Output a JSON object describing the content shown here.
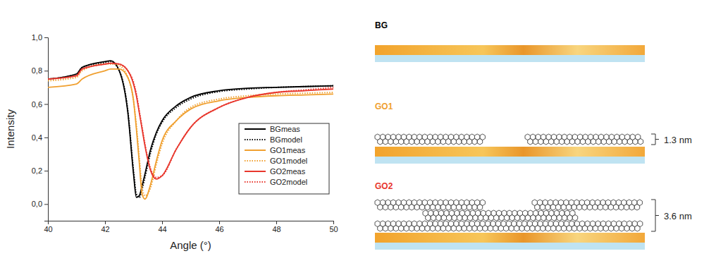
{
  "chart_data": {
    "type": "line",
    "x_label": "Angle (°)",
    "y_label": "Intensity",
    "x": [
      40,
      41,
      41.2,
      42,
      42.2,
      42.5,
      42.8,
      43,
      43.1,
      43.2,
      43.3,
      43.4,
      43.6,
      43.8,
      44,
      44.5,
      45,
      46,
      47,
      48,
      49,
      50
    ],
    "xlim": [
      40,
      50
    ],
    "xticks": [
      40,
      42,
      44,
      46,
      48,
      50
    ],
    "ylim": [
      -0.1,
      1.0
    ],
    "yticks": [
      {
        "value": 0,
        "label": "0,0"
      },
      {
        "value": 0.2,
        "label": "0,2"
      },
      {
        "value": 0.4,
        "label": "0,4"
      },
      {
        "value": 0.6,
        "label": "0,6"
      },
      {
        "value": 0.8,
        "label": "0,8"
      },
      {
        "value": 1.0,
        "label": "1,0"
      }
    ],
    "legend": "lower right",
    "series": [
      {
        "name": "BGmeas",
        "color": "#000000",
        "line_style": "solid",
        "values": [
          0.75,
          0.78,
          0.82,
          0.855,
          0.86,
          0.8,
          0.55,
          0.18,
          0.04,
          0.05,
          0.11,
          0.18,
          0.33,
          0.43,
          0.5,
          0.59,
          0.64,
          0.68,
          0.695,
          0.7,
          0.705,
          0.71
        ]
      },
      {
        "name": "BGmodel",
        "color": "#000000",
        "line_style": "dotted",
        "values": [
          0.75,
          0.78,
          0.82,
          0.85,
          0.855,
          0.8,
          0.56,
          0.2,
          0.06,
          0.04,
          0.09,
          0.16,
          0.31,
          0.42,
          0.49,
          0.58,
          0.63,
          0.675,
          0.69,
          0.7,
          0.705,
          0.71
        ]
      },
      {
        "name": "GO1meas",
        "color": "#f0a030",
        "line_style": "solid",
        "values": [
          0.7,
          0.72,
          0.75,
          0.8,
          0.81,
          0.81,
          0.76,
          0.62,
          0.45,
          0.25,
          0.06,
          0.03,
          0.12,
          0.26,
          0.38,
          0.5,
          0.57,
          0.62,
          0.64,
          0.65,
          0.655,
          0.66
        ]
      },
      {
        "name": "GO1model",
        "color": "#f0a030",
        "line_style": "dotted",
        "values": [
          0.74,
          0.76,
          0.8,
          0.84,
          0.84,
          0.83,
          0.76,
          0.62,
          0.47,
          0.28,
          0.1,
          0.05,
          0.1,
          0.24,
          0.36,
          0.5,
          0.58,
          0.63,
          0.65,
          0.66,
          0.665,
          0.67
        ]
      },
      {
        "name": "GO2meas",
        "color": "#e8372d",
        "line_style": "solid",
        "values": [
          0.75,
          0.77,
          0.81,
          0.84,
          0.845,
          0.84,
          0.8,
          0.72,
          0.65,
          0.55,
          0.45,
          0.35,
          0.2,
          0.15,
          0.17,
          0.33,
          0.46,
          0.58,
          0.64,
          0.67,
          0.68,
          0.69
        ]
      },
      {
        "name": "GO2model",
        "color": "#e8372d",
        "line_style": "dotted",
        "values": [
          0.75,
          0.77,
          0.81,
          0.84,
          0.845,
          0.84,
          0.8,
          0.73,
          0.66,
          0.56,
          0.46,
          0.36,
          0.21,
          0.16,
          0.17,
          0.33,
          0.46,
          0.58,
          0.64,
          0.67,
          0.685,
          0.7
        ]
      }
    ]
  },
  "diagram": {
    "panels": [
      {
        "label": "BG",
        "color": "#000000"
      },
      {
        "label": "GO1",
        "color": "#f0a030",
        "thickness": "1.3 nm"
      },
      {
        "label": "GO2",
        "color": "#e8372d",
        "thickness": "3.6 nm"
      }
    ]
  }
}
